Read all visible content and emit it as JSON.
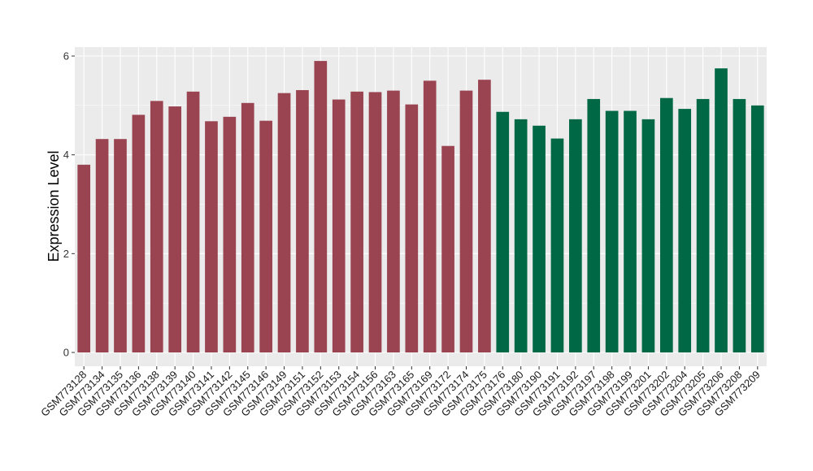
{
  "chart_data": {
    "type": "bar",
    "ylabel": "Expression Level",
    "ylim": [
      0,
      6.2
    ],
    "yticks": [
      0,
      2,
      4,
      6
    ],
    "grid": true,
    "colors": {
      "panel": "#EBEBEB",
      "grid_major": "#FFFFFF",
      "group_1": "#9A4452",
      "group_2": "#006845"
    },
    "categories": [
      "GSM773128",
      "GSM773134",
      "GSM773135",
      "GSM773136",
      "GSM773138",
      "GSM773139",
      "GSM773140",
      "GSM773141",
      "GSM773142",
      "GSM773145",
      "GSM773146",
      "GSM773149",
      "GSM773151",
      "GSM773152",
      "GSM773153",
      "GSM773154",
      "GSM773156",
      "GSM773163",
      "GSM773165",
      "GSM773169",
      "GSM773172",
      "GSM773174",
      "GSM773175",
      "GSM773176",
      "GSM773180",
      "GSM773190",
      "GSM773191",
      "GSM773192",
      "GSM773197",
      "GSM773198",
      "GSM773199",
      "GSM773201",
      "GSM773202",
      "GSM773204",
      "GSM773205",
      "GSM773206",
      "GSM773208",
      "GSM773209"
    ],
    "values": [
      3.8,
      4.32,
      4.32,
      4.81,
      5.09,
      4.98,
      5.28,
      4.68,
      4.77,
      5.05,
      4.69,
      5.25,
      5.31,
      5.9,
      5.12,
      5.28,
      5.27,
      5.3,
      5.02,
      5.5,
      4.18,
      5.3,
      5.52,
      4.87,
      4.72,
      4.59,
      4.33,
      4.72,
      5.13,
      4.89,
      4.89,
      4.72,
      5.15,
      4.93,
      5.13,
      5.75,
      5.13,
      5.0
    ],
    "groups": [
      1,
      1,
      1,
      1,
      1,
      1,
      1,
      1,
      1,
      1,
      1,
      1,
      1,
      1,
      1,
      1,
      1,
      1,
      1,
      1,
      1,
      1,
      1,
      2,
      2,
      2,
      2,
      2,
      2,
      2,
      2,
      2,
      2,
      2,
      2,
      2,
      2,
      2
    ]
  }
}
